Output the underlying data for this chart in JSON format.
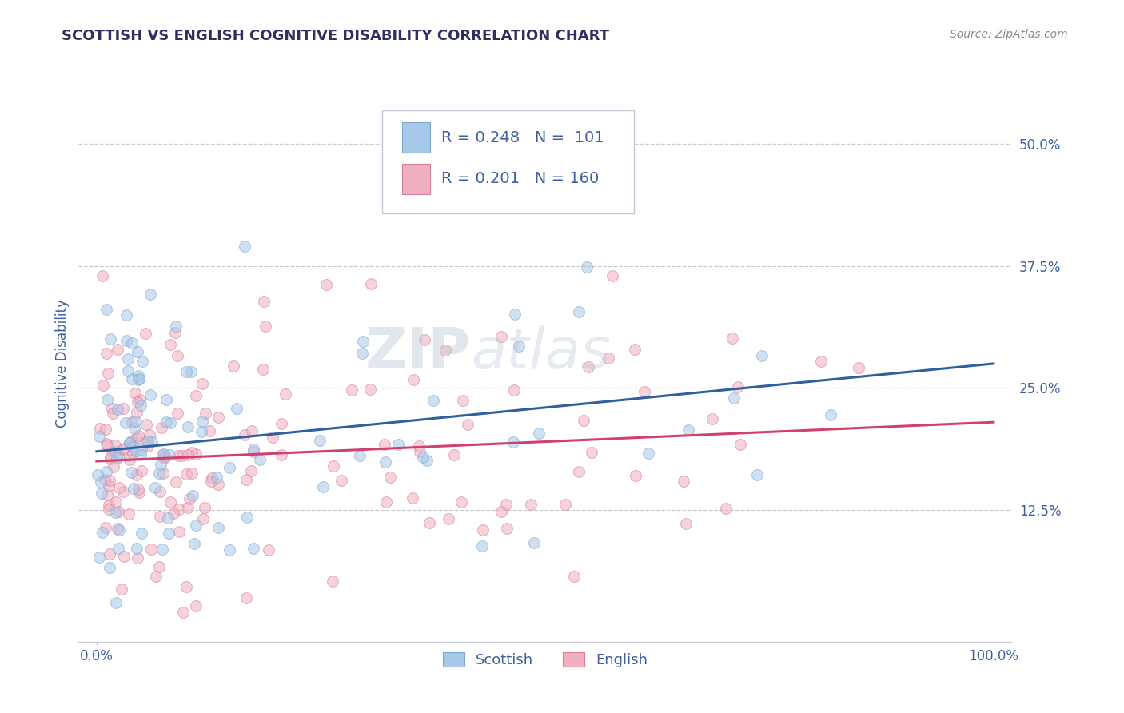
{
  "title": "SCOTTISH VS ENGLISH COGNITIVE DISABILITY CORRELATION CHART",
  "source": "Source: ZipAtlas.com",
  "ylabel": "Cognitive Disability",
  "ytick_labels": [
    "12.5%",
    "25.0%",
    "37.5%",
    "50.0%"
  ],
  "ytick_values": [
    0.125,
    0.25,
    0.375,
    0.5
  ],
  "xlim": [
    -0.02,
    1.02
  ],
  "ylim": [
    -0.01,
    0.56
  ],
  "scottish_color": "#a8c8e8",
  "scottish_edge_color": "#7aaad0",
  "scottish_line_color": "#3060a0",
  "english_color": "#f0b0c0",
  "english_edge_color": "#d88098",
  "english_line_color": "#d04070",
  "background_color": "#ffffff",
  "grid_color": "#c8c8d8",
  "watermark_zip": "ZIP",
  "watermark_atlas": "atlas",
  "watermark_color_zip": "#c0c8d8",
  "watermark_color_atlas": "#b8c8d8",
  "legend_R_scottish": "R = 0.248",
  "legend_N_scottish": "N =  101",
  "legend_R_english": "R = 0.201",
  "legend_N_english": "N = 160",
  "scottish_line_x0": 0.0,
  "scottish_line_y0": 0.185,
  "scottish_line_x1": 1.0,
  "scottish_line_y1": 0.275,
  "english_line_x0": 0.0,
  "english_line_y0": 0.175,
  "english_line_x1": 1.0,
  "english_line_y1": 0.215,
  "title_color": "#303060",
  "axis_label_color": "#4060a0",
  "tick_label_color": "#4060a0",
  "legend_text_color": "#4060a0",
  "marker_size": 100,
  "marker_alpha": 0.55,
  "legend_fontsize": 14,
  "title_fontsize": 13,
  "tick_fontsize": 12
}
